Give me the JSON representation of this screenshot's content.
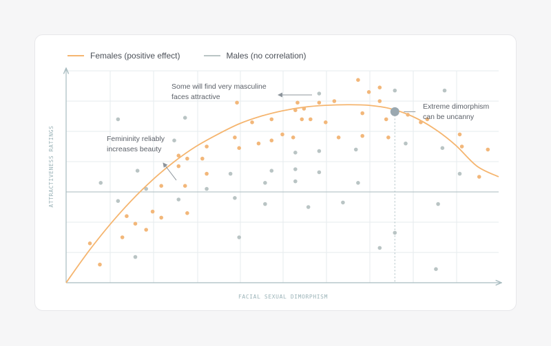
{
  "legend": {
    "females": "Females (positive effect)",
    "males": "Males (no correlation)"
  },
  "colors": {
    "female": "#f2b77a",
    "male": "#b9c4c4",
    "curve": "#f5b56f",
    "grid": "#e6ebee",
    "axis": "#a8bcc0",
    "baseline": "#b9c7c9",
    "axis_title": "#9bb3b8",
    "peak": "#9aa8b0",
    "arrow": "#8c949b"
  },
  "chart_data": {
    "type": "scatter",
    "xlabel": "FACIAL SEXUAL DIMORPHISM",
    "ylabel": "ATTRACTIVENESS RATINGS",
    "xlim": [
      0,
      10
    ],
    "ylim": [
      0,
      7
    ],
    "grid": true,
    "legend_position": "top-left",
    "series": [
      {
        "name": "Females (positive effect)",
        "kind": "points",
        "points": [
          [
            0.55,
            1.3
          ],
          [
            0.78,
            0.6
          ],
          [
            1.3,
            1.5
          ],
          [
            1.4,
            2.2
          ],
          [
            1.6,
            1.95
          ],
          [
            1.85,
            1.75
          ],
          [
            2.0,
            2.35
          ],
          [
            2.2,
            2.15
          ],
          [
            2.2,
            3.2
          ],
          [
            2.6,
            4.2
          ],
          [
            2.6,
            3.85
          ],
          [
            2.75,
            3.2
          ],
          [
            2.8,
            2.3
          ],
          [
            2.8,
            4.1
          ],
          [
            3.15,
            4.1
          ],
          [
            3.25,
            3.6
          ],
          [
            3.25,
            4.5
          ],
          [
            3.9,
            4.8
          ],
          [
            3.95,
            5.95
          ],
          [
            4.0,
            4.45
          ],
          [
            4.3,
            5.3
          ],
          [
            4.45,
            4.6
          ],
          [
            4.75,
            5.4
          ],
          [
            4.75,
            4.7
          ],
          [
            5.0,
            4.9
          ],
          [
            5.25,
            4.8
          ],
          [
            5.3,
            5.7
          ],
          [
            5.35,
            5.95
          ],
          [
            5.45,
            5.4
          ],
          [
            5.5,
            5.75
          ],
          [
            5.65,
            5.4
          ],
          [
            5.85,
            5.95
          ],
          [
            6.0,
            5.3
          ],
          [
            6.2,
            6.0
          ],
          [
            6.3,
            4.8
          ],
          [
            6.75,
            6.7
          ],
          [
            6.85,
            5.6
          ],
          [
            6.85,
            4.85
          ],
          [
            7.0,
            6.3
          ],
          [
            7.25,
            6.45
          ],
          [
            7.25,
            6.0
          ],
          [
            7.4,
            5.4
          ],
          [
            7.45,
            4.8
          ],
          [
            7.9,
            5.55
          ],
          [
            8.2,
            5.3
          ],
          [
            8.35,
            5.4
          ],
          [
            9.1,
            4.9
          ],
          [
            9.15,
            4.5
          ],
          [
            9.55,
            3.5
          ],
          [
            9.75,
            4.4
          ]
        ]
      },
      {
        "name": "Males (no correlation)",
        "kind": "points",
        "points": [
          [
            0.8,
            3.3
          ],
          [
            1.2,
            5.4
          ],
          [
            1.2,
            2.7
          ],
          [
            1.6,
            0.85
          ],
          [
            1.65,
            3.7
          ],
          [
            1.85,
            3.1
          ],
          [
            2.5,
            4.7
          ],
          [
            2.6,
            2.75
          ],
          [
            2.75,
            5.45
          ],
          [
            3.25,
            3.1
          ],
          [
            3.8,
            3.6
          ],
          [
            3.9,
            2.8
          ],
          [
            4.0,
            1.5
          ],
          [
            4.6,
            2.6
          ],
          [
            4.6,
            3.3
          ],
          [
            4.75,
            3.7
          ],
          [
            5.3,
            4.3
          ],
          [
            5.3,
            3.75
          ],
          [
            5.3,
            3.35
          ],
          [
            5.6,
            2.5
          ],
          [
            5.85,
            4.35
          ],
          [
            5.85,
            3.65
          ],
          [
            5.85,
            6.25
          ],
          [
            6.4,
            2.65
          ],
          [
            6.7,
            4.4
          ],
          [
            6.75,
            3.3
          ],
          [
            7.25,
            1.15
          ],
          [
            7.6,
            6.35
          ],
          [
            7.6,
            1.65
          ],
          [
            7.85,
            4.6
          ],
          [
            8.6,
            2.6
          ],
          [
            8.55,
            0.45
          ],
          [
            8.7,
            4.45
          ],
          [
            8.75,
            6.35
          ],
          [
            9.1,
            3.6
          ]
        ]
      },
      {
        "name": "Females (positive effect)",
        "kind": "curve",
        "points": [
          [
            0,
            0
          ],
          [
            0.5,
            1.0
          ],
          [
            1.0,
            1.9
          ],
          [
            1.5,
            2.7
          ],
          [
            2.0,
            3.4
          ],
          [
            2.5,
            4.0
          ],
          [
            3.0,
            4.5
          ],
          [
            3.5,
            4.9
          ],
          [
            4.0,
            5.25
          ],
          [
            4.5,
            5.5
          ],
          [
            5.0,
            5.68
          ],
          [
            5.5,
            5.8
          ],
          [
            6.0,
            5.86
          ],
          [
            6.5,
            5.88
          ],
          [
            7.0,
            5.86
          ],
          [
            7.5,
            5.75
          ],
          [
            8.0,
            5.5
          ],
          [
            8.5,
            5.1
          ],
          [
            9.0,
            4.55
          ],
          [
            9.5,
            3.85
          ],
          [
            10.0,
            3.5
          ]
        ]
      }
    ],
    "highlight": {
      "x": 7.6,
      "y": 5.65
    },
    "annotations": {
      "femininity": [
        "Femininity reliably",
        "increases beauty"
      ],
      "masculine": [
        "Some will find very masculine",
        "faces attractive"
      ],
      "uncanny": [
        "Extreme dimorphism",
        "can be uncanny"
      ]
    }
  }
}
